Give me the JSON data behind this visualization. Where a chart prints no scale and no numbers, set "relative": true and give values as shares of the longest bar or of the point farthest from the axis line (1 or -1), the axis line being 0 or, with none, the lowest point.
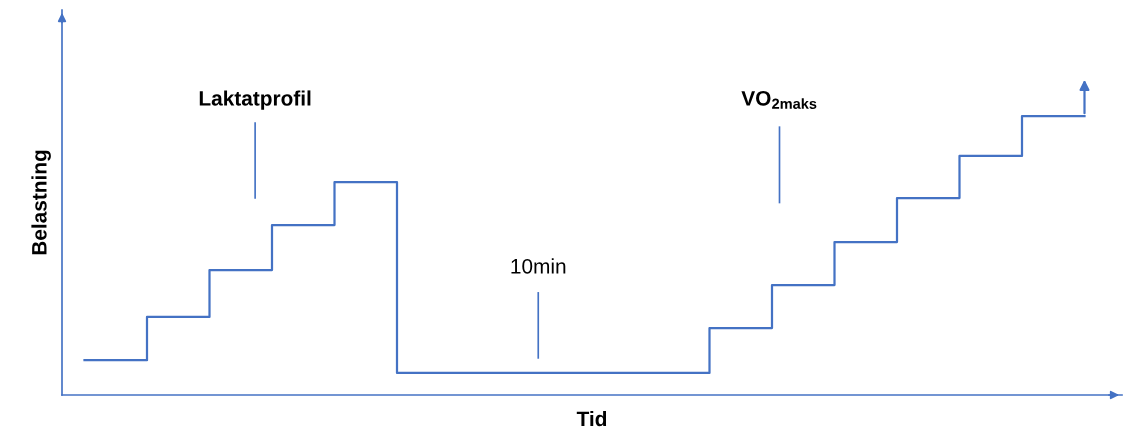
{
  "chart_data": {
    "type": "step",
    "relative": true,
    "xlabel": "Tid",
    "ylabel": "Belastning",
    "categories": [
      null,
      null,
      null,
      null,
      null,
      null,
      null,
      null,
      null,
      null,
      null,
      null,
      null,
      null,
      null,
      null,
      null
    ],
    "series": [
      {
        "color": "#4472c4",
        "values": [
          0.125,
          0.28,
          0.448,
          0.609,
          0.763,
          0.079,
          0.079,
          0.079,
          0.079,
          0.079,
          0.24,
          0.394,
          0.548,
          0.706,
          0.857,
          1,
          1
        ]
      }
    ],
    "annotations": [
      "Laktatprofil",
      "10min",
      "VO$_{2maks}$"
    ],
    "grid": false,
    "legend": false,
    "marker": "none",
    "line_style": "solid"
  }
}
